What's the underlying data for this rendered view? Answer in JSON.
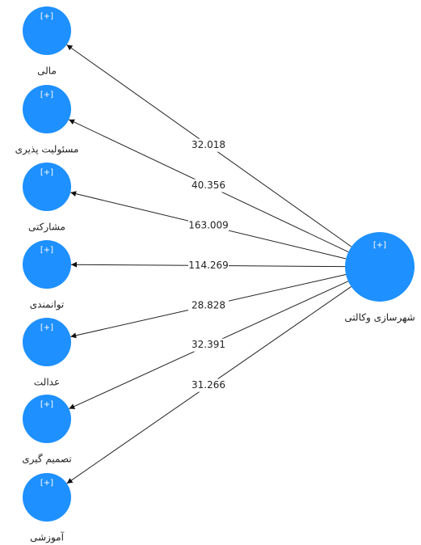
{
  "expand_icon": "[+]",
  "center_node": {
    "label": "شهرسازی وکالتی"
  },
  "nodes": [
    {
      "label": "مالی"
    },
    {
      "label": "مسئولیت پذیری"
    },
    {
      "label": "مشارکتی"
    },
    {
      "label": "توانمندی"
    },
    {
      "label": "عدالت"
    },
    {
      "label": "تصمیم گیری"
    },
    {
      "label": "آموزشی"
    }
  ],
  "edges": [
    {
      "label": "32.018"
    },
    {
      "label": "40.356"
    },
    {
      "label": "163.009"
    },
    {
      "label": "114.269"
    },
    {
      "label": "28.828"
    },
    {
      "label": "32.391"
    },
    {
      "label": "31.266"
    }
  ]
}
